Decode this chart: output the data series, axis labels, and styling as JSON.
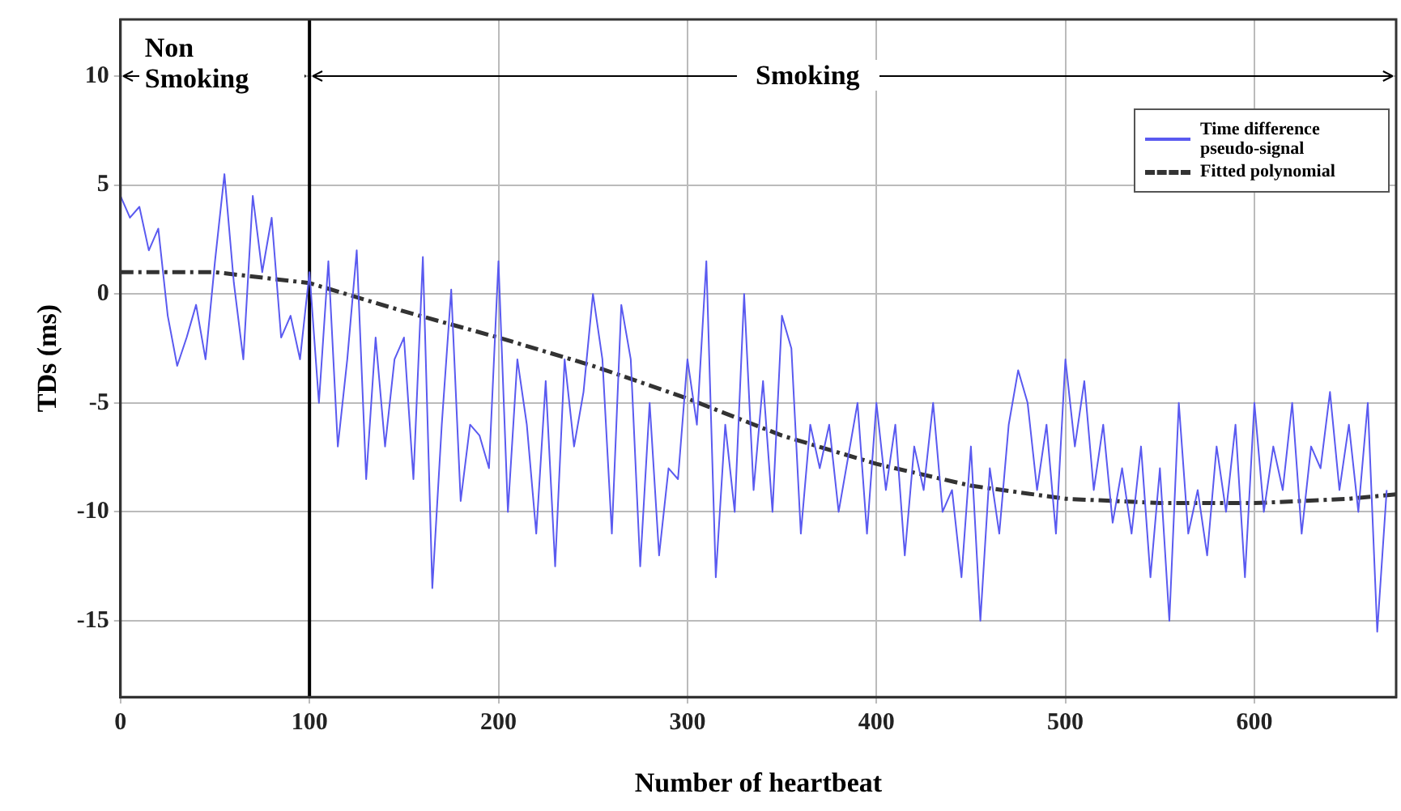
{
  "chart_data": {
    "type": "line",
    "xlabel": "Number of heartbeat",
    "ylabel": "TDs (ms)",
    "xlim": [
      0,
      675
    ],
    "xticks": [
      0,
      100,
      200,
      300,
      400,
      500,
      600
    ],
    "ylim": [
      -18.5,
      12.6
    ],
    "yticks": [
      -15,
      -10,
      -5,
      0,
      5,
      10
    ],
    "grid": true,
    "legend": "top right",
    "marker": "none",
    "ref_lines": [
      {
        "axis": "x",
        "value": 100,
        "color": "#000000"
      }
    ],
    "annotations": [
      "Non Smoking",
      "Smoking"
    ],
    "series": [
      {
        "name": "Time difference pseudo-signal",
        "color": "#5a5af0",
        "line_style": "solid",
        "x": [
          0,
          5,
          10,
          15,
          20,
          25,
          30,
          35,
          40,
          45,
          50,
          55,
          60,
          65,
          70,
          75,
          80,
          85,
          90,
          95,
          100,
          105,
          110,
          115,
          120,
          125,
          130,
          135,
          140,
          145,
          150,
          155,
          160,
          165,
          170,
          175,
          180,
          185,
          190,
          195,
          200,
          205,
          210,
          215,
          220,
          225,
          230,
          235,
          240,
          245,
          250,
          255,
          260,
          265,
          270,
          275,
          280,
          285,
          290,
          295,
          300,
          305,
          310,
          315,
          320,
          325,
          330,
          335,
          340,
          345,
          350,
          355,
          360,
          365,
          370,
          375,
          380,
          385,
          390,
          395,
          400,
          405,
          410,
          415,
          420,
          425,
          430,
          435,
          440,
          445,
          450,
          455,
          460,
          465,
          470,
          475,
          480,
          485,
          490,
          495,
          500,
          505,
          510,
          515,
          520,
          525,
          530,
          535,
          540,
          545,
          550,
          555,
          560,
          565,
          570,
          575,
          580,
          585,
          590,
          595,
          600,
          605,
          610,
          615,
          620,
          625,
          630,
          635,
          640,
          645,
          650,
          655,
          660,
          665,
          670
        ],
        "values": [
          4.5,
          3.5,
          4,
          2,
          3,
          -1,
          -3.3,
          -2,
          -0.5,
          -3,
          1.5,
          5.5,
          0.5,
          -3,
          4.5,
          1,
          3.5,
          -2,
          -1,
          -3,
          1,
          -5,
          1.5,
          -7,
          -3,
          2,
          -8.5,
          -2,
          -7,
          -3,
          -2,
          -8.5,
          1.7,
          -13.5,
          -6,
          0.2,
          -9.5,
          -6,
          -6.5,
          -8,
          1.5,
          -10,
          -3,
          -6,
          -11,
          -4,
          -12.5,
          -3,
          -7,
          -4.5,
          0,
          -3,
          -11,
          -0.5,
          -3,
          -12.5,
          -5,
          -12,
          -8,
          -8.5,
          -3,
          -6,
          1.5,
          -13,
          -6,
          -10,
          0,
          -9,
          -4,
          -10,
          -1,
          -2.5,
          -11,
          -6,
          -8,
          -6,
          -10,
          -7.5,
          -5,
          -11,
          -5,
          -9,
          -6,
          -12,
          -7,
          -9,
          -5,
          -10,
          -9,
          -13,
          -7,
          -15,
          -8,
          -11,
          -6,
          -3.5,
          -5,
          -9,
          -6,
          -11,
          -3,
          -7,
          -4,
          -9,
          -6,
          -10.5,
          -8,
          -11,
          -7,
          -13,
          -8,
          -15,
          -5,
          -11,
          -9,
          -12,
          -7,
          -10,
          -6,
          -13,
          -5,
          -10,
          -7,
          -9,
          -5,
          -11,
          -7,
          -8,
          -4.5,
          -9,
          -6,
          -10,
          -5,
          -15.5,
          -9
        ]
      },
      {
        "name": "Fitted polynomial",
        "color": "#333333",
        "line_style": "dashed",
        "x": [
          0,
          50,
          100,
          150,
          200,
          250,
          300,
          350,
          400,
          450,
          500,
          550,
          600,
          650,
          675
        ],
        "values": [
          1,
          1,
          0.5,
          -0.8,
          -2,
          -3.3,
          -4.8,
          -6.5,
          -7.8,
          -8.8,
          -9.4,
          -9.6,
          -9.6,
          -9.4,
          -9.2
        ]
      }
    ]
  }
}
